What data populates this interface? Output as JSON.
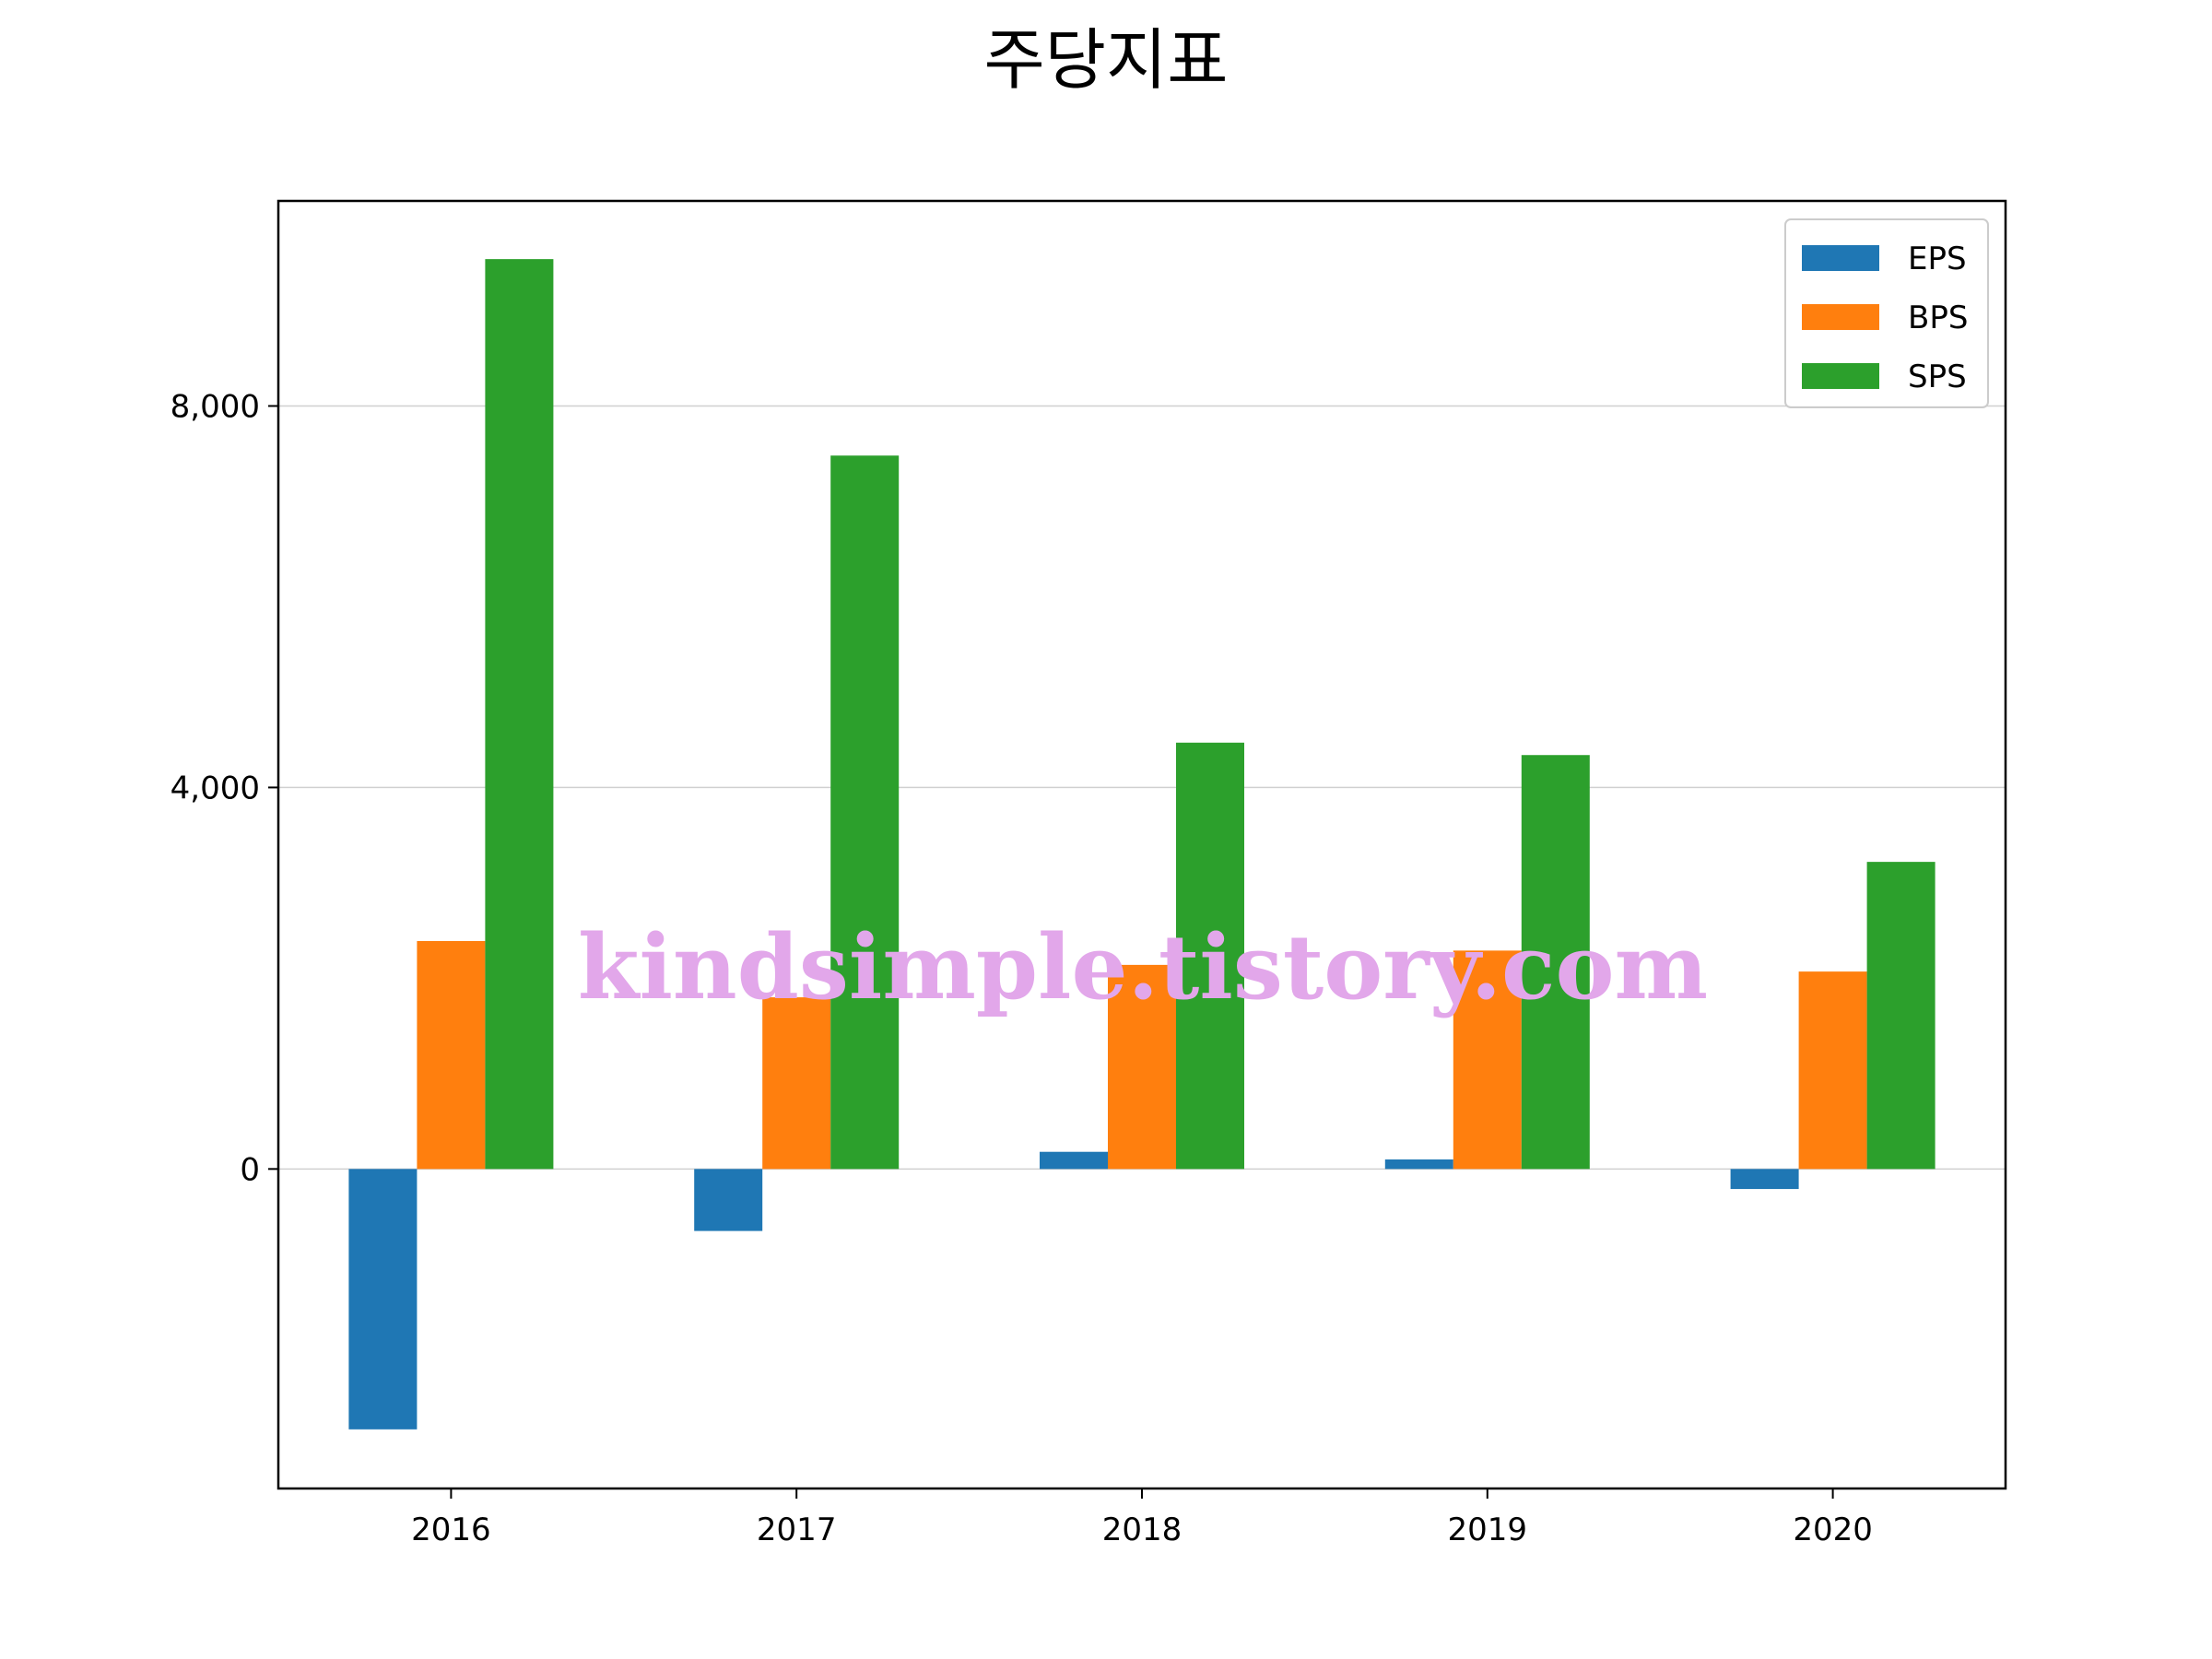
{
  "chart_data": {
    "type": "bar",
    "title": "주당지표",
    "xlabel": "",
    "ylabel": "",
    "categories": [
      "2016",
      "2017",
      "2018",
      "2019",
      "2020"
    ],
    "series": [
      {
        "name": "EPS",
        "color": "#1f77b4",
        "values": [
          -2730,
          -650,
          180,
          100,
          -210
        ]
      },
      {
        "name": "BPS",
        "color": "#ff7f0e",
        "values": [
          2390,
          1800,
          2140,
          2290,
          2070
        ]
      },
      {
        "name": "SPS",
        "color": "#2ca02c",
        "values": [
          9540,
          7480,
          4470,
          4340,
          3220
        ]
      }
    ],
    "ylim": [
      -3350,
      10150
    ],
    "yticks": [
      0,
      4000,
      8000
    ],
    "ytick_labels": [
      "0",
      "4,000",
      "8,000"
    ],
    "grid": "horizontal",
    "legend_position": "top-right"
  },
  "watermark": "kindsimple.tistory.com"
}
